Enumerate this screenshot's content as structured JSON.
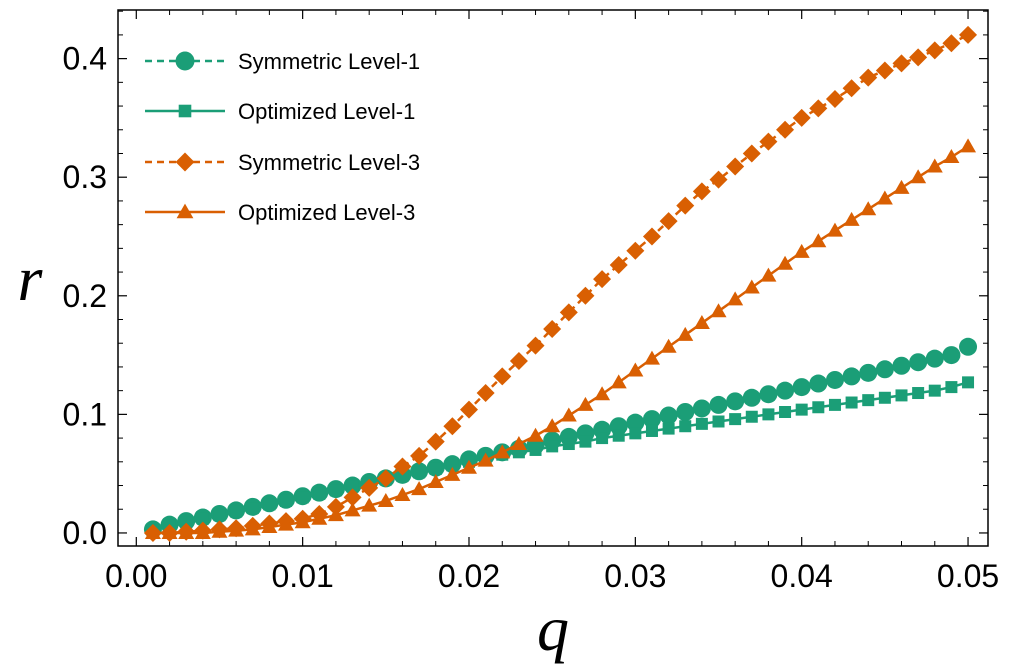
{
  "chart_data": {
    "type": "line",
    "title": "",
    "xlabel": "q",
    "ylabel": "r",
    "xlim": [
      0.0,
      0.05
    ],
    "ylim": [
      0.0,
      0.42
    ],
    "xticks": [
      0.0,
      0.01,
      0.02,
      0.03,
      0.04,
      0.05
    ],
    "xtick_labels": [
      "0.00",
      "0.01",
      "0.02",
      "0.03",
      "0.04",
      "0.05"
    ],
    "yticks": [
      0.0,
      0.1,
      0.2,
      0.3,
      0.4
    ],
    "ytick_labels": [
      "0.0",
      "0.1",
      "0.2",
      "0.3",
      "0.4"
    ],
    "grid": false,
    "frame": true,
    "legend_position": "top-left",
    "x": [
      0.001,
      0.002,
      0.003,
      0.004,
      0.005,
      0.006,
      0.007,
      0.008,
      0.009,
      0.01,
      0.011,
      0.012,
      0.013,
      0.014,
      0.015,
      0.016,
      0.017,
      0.018,
      0.019,
      0.02,
      0.021,
      0.022,
      0.023,
      0.024,
      0.025,
      0.026,
      0.027,
      0.028,
      0.029,
      0.03,
      0.031,
      0.032,
      0.033,
      0.034,
      0.035,
      0.036,
      0.037,
      0.038,
      0.039,
      0.04,
      0.041,
      0.042,
      0.043,
      0.044,
      0.045,
      0.046,
      0.047,
      0.048,
      0.049,
      0.05
    ],
    "series": [
      {
        "name": "Symmetric Level-1",
        "color": "#1b9e77",
        "line_style": "dashed",
        "marker": "circle",
        "values": [
          0.003,
          0.007,
          0.01,
          0.013,
          0.016,
          0.019,
          0.022,
          0.025,
          0.028,
          0.031,
          0.034,
          0.037,
          0.04,
          0.043,
          0.046,
          0.049,
          0.052,
          0.055,
          0.058,
          0.062,
          0.065,
          0.068,
          0.071,
          0.074,
          0.078,
          0.081,
          0.084,
          0.087,
          0.09,
          0.093,
          0.096,
          0.099,
          0.102,
          0.105,
          0.108,
          0.111,
          0.114,
          0.117,
          0.12,
          0.123,
          0.126,
          0.129,
          0.132,
          0.135,
          0.138,
          0.141,
          0.144,
          0.147,
          0.15,
          0.157
        ]
      },
      {
        "name": "Optimized Level-1",
        "color": "#1b9e77",
        "line_style": "solid",
        "marker": "square",
        "values": [
          0.002,
          0.006,
          0.009,
          0.012,
          0.015,
          0.018,
          0.021,
          0.024,
          0.027,
          0.03,
          0.033,
          0.036,
          0.039,
          0.042,
          0.045,
          0.048,
          0.051,
          0.054,
          0.057,
          0.06,
          0.063,
          0.066,
          0.068,
          0.07,
          0.073,
          0.075,
          0.077,
          0.08,
          0.082,
          0.084,
          0.086,
          0.088,
          0.09,
          0.092,
          0.094,
          0.096,
          0.098,
          0.1,
          0.102,
          0.104,
          0.106,
          0.108,
          0.11,
          0.112,
          0.114,
          0.116,
          0.118,
          0.12,
          0.123,
          0.127
        ]
      },
      {
        "name": "Symmetric Level-3",
        "color": "#d95f02",
        "line_style": "dashed",
        "marker": "diamond",
        "values": [
          0.0,
          0.0,
          0.001,
          0.002,
          0.003,
          0.004,
          0.006,
          0.008,
          0.01,
          0.012,
          0.016,
          0.022,
          0.03,
          0.038,
          0.046,
          0.056,
          0.065,
          0.077,
          0.09,
          0.104,
          0.118,
          0.132,
          0.145,
          0.158,
          0.172,
          0.186,
          0.2,
          0.214,
          0.226,
          0.238,
          0.25,
          0.263,
          0.276,
          0.288,
          0.298,
          0.309,
          0.32,
          0.33,
          0.34,
          0.35,
          0.358,
          0.366,
          0.375,
          0.384,
          0.39,
          0.396,
          0.401,
          0.407,
          0.413,
          0.42
        ]
      },
      {
        "name": "Optimized Level-3",
        "color": "#d95f02",
        "line_style": "solid",
        "marker": "triangle",
        "values": [
          0.0,
          0.0,
          0.0,
          0.0,
          0.001,
          0.002,
          0.003,
          0.005,
          0.007,
          0.009,
          0.012,
          0.015,
          0.019,
          0.023,
          0.027,
          0.032,
          0.037,
          0.043,
          0.049,
          0.055,
          0.061,
          0.068,
          0.075,
          0.082,
          0.09,
          0.099,
          0.108,
          0.117,
          0.127,
          0.137,
          0.147,
          0.157,
          0.167,
          0.177,
          0.187,
          0.197,
          0.207,
          0.217,
          0.227,
          0.237,
          0.246,
          0.255,
          0.264,
          0.273,
          0.282,
          0.291,
          0.3,
          0.309,
          0.317,
          0.326
        ]
      }
    ]
  }
}
